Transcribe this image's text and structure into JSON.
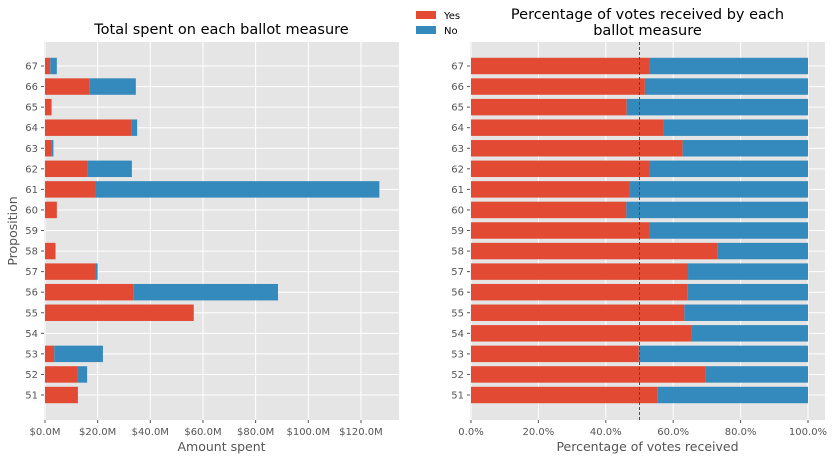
{
  "colors": {
    "yes": "#E24A33",
    "no": "#348ABD",
    "panel_bg": "#E5E5E5",
    "grid": "#FFFFFF",
    "threshold_line": "#008000"
  },
  "legend": {
    "placement": "top-center",
    "entries": [
      {
        "label": "Yes",
        "color_key": "yes"
      },
      {
        "label": "No",
        "color_key": "no"
      }
    ]
  },
  "chart_data": [
    {
      "type": "bar",
      "orientation": "horizontal",
      "stacked": true,
      "title": "Total spent on each ballot measure",
      "xlabel": "Amount spent",
      "ylabel": "Proposition",
      "categories": [
        "51",
        "52",
        "53",
        "54",
        "55",
        "56",
        "57",
        "58",
        "59",
        "60",
        "61",
        "62",
        "63",
        "64",
        "65",
        "66",
        "67"
      ],
      "xlim": [
        0,
        133
      ],
      "x_unit": "$M",
      "x_ticks": [
        0,
        20,
        40,
        60,
        80,
        100,
        120
      ],
      "x_tick_labels": [
        "$0.0M",
        "$20.0M",
        "$40.0M",
        "$60.0M",
        "$80.0M",
        "$100.0M",
        "$120.0M"
      ],
      "grid": true,
      "series": [
        {
          "name": "Yes",
          "color_key": "yes",
          "values": [
            12.5,
            12.5,
            3.5,
            0,
            56.5,
            33.5,
            19,
            4,
            0,
            4.5,
            19,
            16,
            2.5,
            33,
            2.5,
            17,
            2
          ]
        },
        {
          "name": "No",
          "color_key": "no",
          "values": [
            0,
            3.5,
            18.5,
            0,
            0,
            55,
            1,
            0,
            0,
            0,
            108,
            17,
            0.7,
            2,
            0,
            17.5,
            2.5
          ]
        }
      ]
    },
    {
      "type": "bar",
      "orientation": "horizontal",
      "stacked": true,
      "title": "Percentage of votes received by each ballot measure",
      "title_lines": [
        "Percentage of votes received by each",
        "ballot measure"
      ],
      "xlabel": "Percentage of votes received",
      "ylabel": "",
      "categories": [
        "51",
        "52",
        "53",
        "54",
        "55",
        "56",
        "57",
        "58",
        "59",
        "60",
        "61",
        "62",
        "63",
        "64",
        "65",
        "66",
        "67"
      ],
      "xlim": [
        0,
        1.0
      ],
      "x_ticks": [
        0,
        0.2,
        0.4,
        0.6,
        0.8,
        1.0
      ],
      "x_tick_labels": [
        "0.0%",
        "20.0%",
        "40.0%",
        "60.0%",
        "80.0%",
        "100.0%"
      ],
      "grid": true,
      "reference_line": {
        "x": 0.5,
        "style": "dashed"
      },
      "series": [
        {
          "name": "Yes",
          "color_key": "yes",
          "values": [
            0.554,
            0.697,
            0.498,
            0.653,
            0.633,
            0.643,
            0.644,
            0.731,
            0.531,
            0.461,
            0.469,
            0.531,
            0.628,
            0.571,
            0.462,
            0.516,
            0.531
          ]
        },
        {
          "name": "No",
          "color_key": "no",
          "values": [
            0.446,
            0.303,
            0.502,
            0.347,
            0.367,
            0.357,
            0.356,
            0.269,
            0.469,
            0.539,
            0.531,
            0.469,
            0.372,
            0.429,
            0.538,
            0.484,
            0.469
          ]
        }
      ]
    }
  ]
}
